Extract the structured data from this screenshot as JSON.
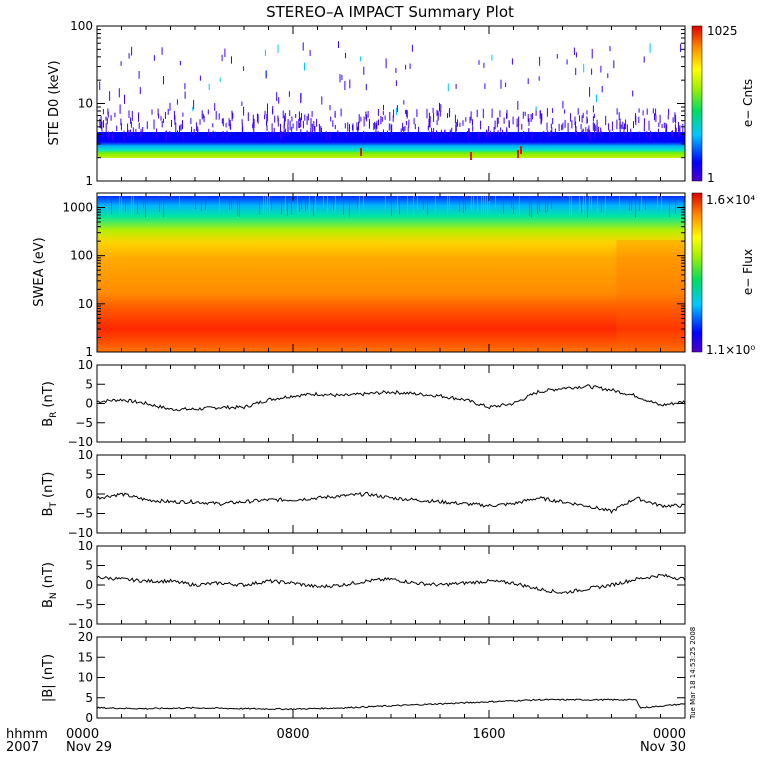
{
  "title": "STEREO–A IMPACT Summary Plot",
  "timestamp": "Tue Mar 18 14:53:25 2008",
  "time_axis": {
    "row1_label": "hhmm",
    "row2_label": "2007",
    "ticks": [
      {
        "hours": 0,
        "label": "0000",
        "sublabel": "Nov 29"
      },
      {
        "hours": 8,
        "label": "0800",
        "sublabel": ""
      },
      {
        "hours": 16,
        "label": "1600",
        "sublabel": ""
      },
      {
        "hours": 24,
        "label": "0000",
        "sublabel": "Nov 30"
      }
    ],
    "range_hours": [
      0,
      24
    ]
  },
  "panels": {
    "ste": {
      "ylabel": "STE D0 (keV)",
      "yticks": [
        "1",
        "10",
        "100"
      ],
      "colorbar_label": "e− Cnts",
      "colorbar_max": "1025",
      "colorbar_min": "1"
    },
    "swea": {
      "ylabel": "SWEA (eV)",
      "yticks": [
        "1",
        "10",
        "100",
        "1000"
      ],
      "colorbar_label": "e− Flux",
      "colorbar_max": "1.6×10⁴",
      "colorbar_min": "1.1×10⁰"
    },
    "br": {
      "ylabel_main": "B",
      "ylabel_sub": "R",
      "ylabel_unit": "(nT)",
      "yticks": [
        "10",
        "5",
        "0",
        "−5",
        "−10"
      ]
    },
    "bt": {
      "ylabel_main": "B",
      "ylabel_sub": "T",
      "ylabel_unit": "(nT)",
      "yticks": [
        "10",
        "5",
        "0",
        "−5",
        "−10"
      ]
    },
    "bn": {
      "ylabel_main": "B",
      "ylabel_sub": "N",
      "ylabel_unit": "(nT)",
      "yticks": [
        "10",
        "5",
        "0",
        "−5",
        "−10"
      ]
    },
    "bmag": {
      "ylabel": "|B| (nT)",
      "yticks": [
        "20",
        "15",
        "10",
        "5",
        "0"
      ]
    }
  },
  "colors": {
    "line": "#000000",
    "spectrum_low": "#5000c8",
    "spectrum_high": "#dc0000"
  },
  "chart_data": [
    {
      "type": "heatmap",
      "name_ref": "ste",
      "ylabel": "STE D0 (keV)",
      "ylim": [
        1,
        100
      ],
      "yscale": "log",
      "zlim": [
        1,
        1025
      ],
      "description_bands": [
        {
          "energy_keV": [
            1.9,
            2.4
          ],
          "level": "green-yellow"
        },
        {
          "energy_keV": [
            2.4,
            3.3
          ],
          "level": "cyan"
        },
        {
          "energy_keV": [
            3.3,
            5.0
          ],
          "level": "blue, sporadic"
        }
      ]
    },
    {
      "type": "heatmap",
      "name_ref": "swea",
      "ylabel": "SWEA (eV)",
      "ylim": [
        1,
        2000
      ],
      "yscale": "log",
      "zlim": [
        1.1,
        16000
      ]
    },
    {
      "type": "line",
      "name_ref": "br",
      "ylabel": "B_R (nT)",
      "ylim": [
        -10,
        10
      ],
      "x": [
        0,
        1,
        2,
        3,
        4,
        5,
        6,
        7,
        8,
        9,
        10,
        11,
        12,
        13,
        14,
        15,
        16,
        17,
        18,
        19,
        20,
        21,
        22,
        23,
        24
      ],
      "y": [
        0.5,
        1,
        0,
        -1.5,
        -1.5,
        -1,
        -1,
        1,
        2,
        2.5,
        2,
        2.5,
        3,
        2.5,
        2,
        1,
        -1,
        0,
        3,
        4,
        4.5,
        3.5,
        2,
        -0.5,
        0.5
      ]
    },
    {
      "type": "line",
      "name_ref": "bt",
      "ylabel": "B_T (nT)",
      "ylim": [
        -10,
        10
      ],
      "x": [
        0,
        1,
        2,
        3,
        4,
        5,
        6,
        7,
        8,
        9,
        10,
        11,
        12,
        13,
        14,
        15,
        16,
        17,
        18,
        19,
        20,
        21,
        22,
        23,
        24
      ],
      "y": [
        -1,
        0,
        -1.5,
        -2,
        -2,
        -2.5,
        -2,
        -1.5,
        -1.5,
        -1,
        -0.5,
        0,
        -1,
        -1.5,
        -2,
        -2.5,
        -3,
        -2.5,
        -1,
        -2,
        -3,
        -4.5,
        -1,
        -3,
        -3
      ]
    },
    {
      "type": "line",
      "name_ref": "bn",
      "ylabel": "B_N (nT)",
      "ylim": [
        -10,
        10
      ],
      "x": [
        0,
        1,
        2,
        3,
        4,
        5,
        6,
        7,
        8,
        9,
        10,
        11,
        12,
        13,
        14,
        15,
        16,
        17,
        18,
        19,
        20,
        21,
        22,
        23,
        24
      ],
      "y": [
        2,
        1.5,
        1,
        1,
        0,
        0.5,
        0,
        1,
        0.5,
        -0.5,
        0,
        1,
        1.5,
        0.5,
        0,
        0.5,
        1,
        0.5,
        -1,
        -2,
        -1,
        0,
        1.5,
        2.5,
        1.5
      ]
    },
    {
      "type": "line",
      "name_ref": "bmag",
      "ylabel": "|B| (nT)",
      "ylim": [
        0,
        20
      ],
      "x": [
        0,
        2,
        4,
        6,
        8,
        10,
        12,
        14,
        16,
        18,
        20,
        22,
        22.2,
        24
      ],
      "y": [
        2.5,
        2.3,
        2.5,
        2.3,
        2.2,
        2.5,
        3,
        3.5,
        4,
        4.5,
        4.5,
        4.5,
        2.5,
        3.5
      ]
    }
  ]
}
